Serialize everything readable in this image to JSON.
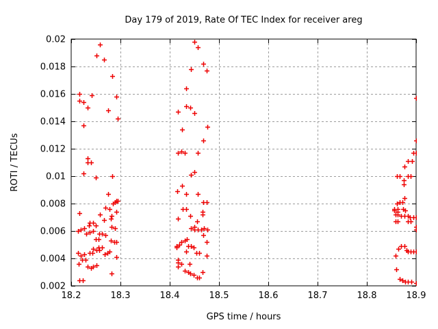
{
  "chart_data": {
    "type": "scatter",
    "title": "Day 179 of 2019, Rate Of TEC Index for receiver areg",
    "xlabel": "GPS time / hours",
    "ylabel": "ROTI / TECUs",
    "xlim": [
      18.2,
      18.9
    ],
    "ylim": [
      0.002,
      0.02
    ],
    "x_ticks": [
      18.2,
      18.3,
      18.4,
      18.5,
      18.6,
      18.7,
      18.8,
      18.9
    ],
    "x_tick_labels": [
      "18.2",
      "18.3",
      "18.4",
      "18.5",
      "18.6",
      "18.7",
      "18.8",
      "18.9"
    ],
    "y_ticks": [
      0.002,
      0.004,
      0.006,
      0.008,
      0.01,
      0.012,
      0.014,
      0.016,
      0.018,
      0.02
    ],
    "y_tick_labels": [
      "0.002",
      "0.004",
      "0.006",
      "0.008",
      "0.01",
      "0.012",
      "0.014",
      "0.016",
      "0.018",
      "0.02"
    ],
    "grid": true,
    "legend": "none",
    "marker": {
      "shape": "plus",
      "size": 7,
      "color": "#ee0000"
    },
    "points": [
      [
        18.259,
        0.0196
      ],
      [
        18.251,
        0.0188
      ],
      [
        18.266,
        0.0185
      ],
      [
        18.283,
        0.0173
      ],
      [
        18.216,
        0.016
      ],
      [
        18.242,
        0.0159
      ],
      [
        18.292,
        0.0158
      ],
      [
        18.217,
        0.0155
      ],
      [
        18.225,
        0.0154
      ],
      [
        18.234,
        0.015
      ],
      [
        18.275,
        0.0148
      ],
      [
        18.294,
        0.0142
      ],
      [
        18.225,
        0.0137
      ],
      [
        18.234,
        0.0113
      ],
      [
        18.234,
        0.011
      ],
      [
        18.24,
        0.011
      ],
      [
        18.225,
        0.0102
      ],
      [
        18.25,
        0.0099
      ],
      [
        18.283,
        0.01
      ],
      [
        18.275,
        0.0087
      ],
      [
        18.292,
        0.0082
      ],
      [
        18.285,
        0.008
      ],
      [
        18.289,
        0.0081
      ],
      [
        18.295,
        0.0082
      ],
      [
        18.216,
        0.0073
      ],
      [
        18.269,
        0.0077
      ],
      [
        18.278,
        0.0076
      ],
      [
        18.259,
        0.0072
      ],
      [
        18.292,
        0.0074
      ],
      [
        18.282,
        0.0071
      ],
      [
        18.266,
        0.0068
      ],
      [
        18.28,
        0.0069
      ],
      [
        18.238,
        0.0066
      ],
      [
        18.244,
        0.0066
      ],
      [
        18.25,
        0.0064
      ],
      [
        18.236,
        0.0064
      ],
      [
        18.22,
        0.0061
      ],
      [
        18.227,
        0.0062
      ],
      [
        18.214,
        0.006
      ],
      [
        18.238,
        0.0059
      ],
      [
        18.245,
        0.006
      ],
      [
        18.231,
        0.0058
      ],
      [
        18.257,
        0.0058
      ],
      [
        18.263,
        0.0058
      ],
      [
        18.269,
        0.0057
      ],
      [
        18.282,
        0.0063
      ],
      [
        18.289,
        0.0062
      ],
      [
        18.25,
        0.0054
      ],
      [
        18.255,
        0.0054
      ],
      [
        18.28,
        0.0053
      ],
      [
        18.287,
        0.0052
      ],
      [
        18.291,
        0.0052
      ],
      [
        18.255,
        0.0048
      ],
      [
        18.262,
        0.0048
      ],
      [
        18.245,
        0.0047
      ],
      [
        18.251,
        0.0046
      ],
      [
        18.257,
        0.0046
      ],
      [
        18.214,
        0.0044
      ],
      [
        18.22,
        0.0042
      ],
      [
        18.226,
        0.0043
      ],
      [
        18.238,
        0.0044
      ],
      [
        18.243,
        0.0044
      ],
      [
        18.268,
        0.0043
      ],
      [
        18.274,
        0.0044
      ],
      [
        18.278,
        0.0045
      ],
      [
        18.292,
        0.0041
      ],
      [
        18.222,
        0.0039
      ],
      [
        18.229,
        0.0039
      ],
      [
        18.215,
        0.0036
      ],
      [
        18.234,
        0.0034
      ],
      [
        18.24,
        0.0033
      ],
      [
        18.245,
        0.0034
      ],
      [
        18.251,
        0.0035
      ],
      [
        18.282,
        0.0029
      ],
      [
        18.217,
        0.0024
      ],
      [
        18.223,
        0.0024
      ],
      [
        18.45,
        0.0198
      ],
      [
        18.457,
        0.0194
      ],
      [
        18.468,
        0.0182
      ],
      [
        18.443,
        0.0178
      ],
      [
        18.475,
        0.0177
      ],
      [
        18.434,
        0.0164
      ],
      [
        18.434,
        0.0151
      ],
      [
        18.441,
        0.015
      ],
      [
        18.417,
        0.0147
      ],
      [
        18.45,
        0.0146
      ],
      [
        18.425,
        0.0134
      ],
      [
        18.476,
        0.0136
      ],
      [
        18.468,
        0.0126
      ],
      [
        18.417,
        0.0117
      ],
      [
        18.424,
        0.0118
      ],
      [
        18.43,
        0.0117
      ],
      [
        18.457,
        0.0117
      ],
      [
        18.443,
        0.0101
      ],
      [
        18.45,
        0.0103
      ],
      [
        18.425,
        0.0093
      ],
      [
        18.415,
        0.0089
      ],
      [
        18.433,
        0.0087
      ],
      [
        18.457,
        0.0087
      ],
      [
        18.468,
        0.0081
      ],
      [
        18.475,
        0.0081
      ],
      [
        18.426,
        0.0076
      ],
      [
        18.433,
        0.0076
      ],
      [
        18.467,
        0.0074
      ],
      [
        18.467,
        0.0072
      ],
      [
        18.417,
        0.0069
      ],
      [
        18.442,
        0.0071
      ],
      [
        18.456,
        0.0067
      ],
      [
        18.443,
        0.0062
      ],
      [
        18.45,
        0.0063
      ],
      [
        18.45,
        0.0061
      ],
      [
        18.457,
        0.0061
      ],
      [
        18.464,
        0.0061
      ],
      [
        18.47,
        0.0062
      ],
      [
        18.477,
        0.0061
      ],
      [
        18.468,
        0.0057
      ],
      [
        18.475,
        0.0052
      ],
      [
        18.424,
        0.0052
      ],
      [
        18.431,
        0.0053
      ],
      [
        18.435,
        0.0054
      ],
      [
        18.414,
        0.0049
      ],
      [
        18.42,
        0.005
      ],
      [
        18.414,
        0.0048
      ],
      [
        18.438,
        0.0049
      ],
      [
        18.443,
        0.0049
      ],
      [
        18.449,
        0.0048
      ],
      [
        18.433,
        0.0045
      ],
      [
        18.454,
        0.0044
      ],
      [
        18.46,
        0.0044
      ],
      [
        18.475,
        0.0042
      ],
      [
        18.417,
        0.0039
      ],
      [
        18.417,
        0.0037
      ],
      [
        18.424,
        0.0036
      ],
      [
        18.44,
        0.0036
      ],
      [
        18.417,
        0.0034
      ],
      [
        18.431,
        0.0031
      ],
      [
        18.437,
        0.003
      ],
      [
        18.442,
        0.0029
      ],
      [
        18.467,
        0.003
      ],
      [
        18.449,
        0.0028
      ],
      [
        18.455,
        0.0026
      ],
      [
        18.46,
        0.0026
      ],
      [
        18.9,
        0.0157
      ],
      [
        18.9,
        0.0126
      ],
      [
        18.894,
        0.0117
      ],
      [
        18.9,
        0.0117
      ],
      [
        18.884,
        0.0111
      ],
      [
        18.891,
        0.0111
      ],
      [
        18.876,
        0.0107
      ],
      [
        18.861,
        0.01
      ],
      [
        18.867,
        0.01
      ],
      [
        18.883,
        0.01
      ],
      [
        18.889,
        0.01
      ],
      [
        18.875,
        0.0097
      ],
      [
        18.875,
        0.0094
      ],
      [
        18.876,
        0.0084
      ],
      [
        18.867,
        0.0081
      ],
      [
        18.872,
        0.0081
      ],
      [
        18.861,
        0.008
      ],
      [
        18.856,
        0.0076
      ],
      [
        18.862,
        0.0076
      ],
      [
        18.873,
        0.0076
      ],
      [
        18.878,
        0.0075
      ],
      [
        18.856,
        0.0075
      ],
      [
        18.862,
        0.0074
      ],
      [
        18.858,
        0.0072
      ],
      [
        18.863,
        0.0072
      ],
      [
        18.87,
        0.0071
      ],
      [
        18.876,
        0.0071
      ],
      [
        18.883,
        0.0071
      ],
      [
        18.887,
        0.007
      ],
      [
        18.894,
        0.007
      ],
      [
        18.9,
        0.007
      ],
      [
        18.858,
        0.0067
      ],
      [
        18.863,
        0.0067
      ],
      [
        18.883,
        0.0067
      ],
      [
        18.889,
        0.0067
      ],
      [
        18.9,
        0.0063
      ],
      [
        18.9,
        0.0061
      ],
      [
        18.87,
        0.0049
      ],
      [
        18.876,
        0.0049
      ],
      [
        18.864,
        0.0047
      ],
      [
        18.881,
        0.0046
      ],
      [
        18.884,
        0.0045
      ],
      [
        18.889,
        0.0045
      ],
      [
        18.895,
        0.0045
      ],
      [
        18.9,
        0.0045
      ],
      [
        18.859,
        0.0042
      ],
      [
        18.86,
        0.0032
      ],
      [
        18.866,
        0.0025
      ],
      [
        18.872,
        0.0024
      ],
      [
        18.878,
        0.0023
      ],
      [
        18.884,
        0.0023
      ],
      [
        18.89,
        0.0023
      ],
      [
        18.9,
        0.0022
      ]
    ]
  },
  "colors": {
    "background": "#ffffff",
    "axis": "#000000",
    "grid": "#9c9c9c",
    "marker": "#ee0000",
    "text": "#000000"
  }
}
